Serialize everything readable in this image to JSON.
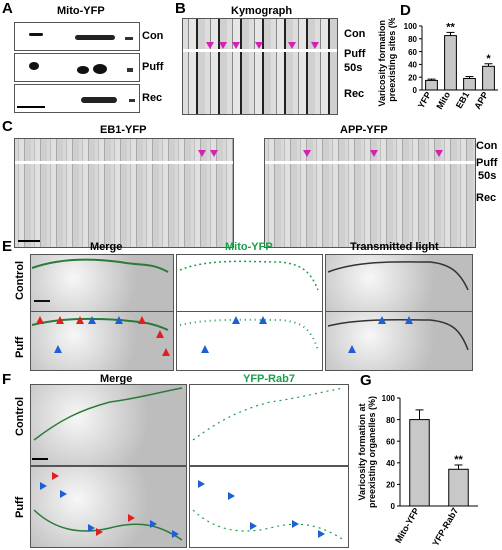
{
  "panels": {
    "A": {
      "label": "A",
      "title": "Mito-YFP",
      "rows": [
        "Con",
        "Puff",
        "Rec"
      ]
    },
    "B": {
      "label": "B",
      "title": "Kymograph",
      "rows": [
        "Con",
        "Puff",
        "50s",
        "Rec"
      ]
    },
    "C": {
      "label": "C",
      "titles": [
        "EB1-YFP",
        "APP-YFP"
      ],
      "rows": [
        "Con",
        "Puff",
        "50s",
        "Rec"
      ]
    },
    "D": {
      "label": "D"
    },
    "E": {
      "label": "E",
      "titles": [
        "Merge",
        "Mito-YFP",
        "Transmitted light"
      ],
      "rows": [
        "Control",
        "Puff"
      ]
    },
    "F": {
      "label": "F",
      "titles": [
        "Merge",
        "YFP-Rab7"
      ],
      "rows": [
        "Control",
        "Puff"
      ]
    },
    "G": {
      "label": "G"
    }
  },
  "chart_data": [
    {
      "type": "bar",
      "panel": "D",
      "ylabel": "Varicosity formation at preexisting sites (%)",
      "categories": [
        "YFP",
        "Mito",
        "EB1",
        "APP"
      ],
      "values": [
        15,
        85,
        18,
        37
      ],
      "errors": [
        2,
        5,
        3,
        4
      ],
      "significance": [
        "",
        "**",
        "",
        "*"
      ],
      "ylim": [
        0,
        100
      ],
      "yticks": [
        "0",
        "20",
        "40",
        "60",
        "80",
        "100"
      ]
    },
    {
      "type": "bar",
      "panel": "G",
      "ylabel": "Varicosity formation at preexisting organelles (%)",
      "categories": [
        "Mito-YFP",
        "YFP-Rab7"
      ],
      "values": [
        80,
        34
      ],
      "errors": [
        9,
        4
      ],
      "significance": [
        "",
        "**"
      ],
      "ylim": [
        0,
        100
      ],
      "yticks": [
        "0",
        "20",
        "40",
        "60",
        "80",
        "100"
      ]
    }
  ],
  "colors": {
    "bar": "#c8c8c8",
    "accent_green": "#19a04a",
    "arrow_magenta": "#d61fb4",
    "arrow_blue": "#1f5fd6",
    "arrow_red": "#e02020"
  }
}
